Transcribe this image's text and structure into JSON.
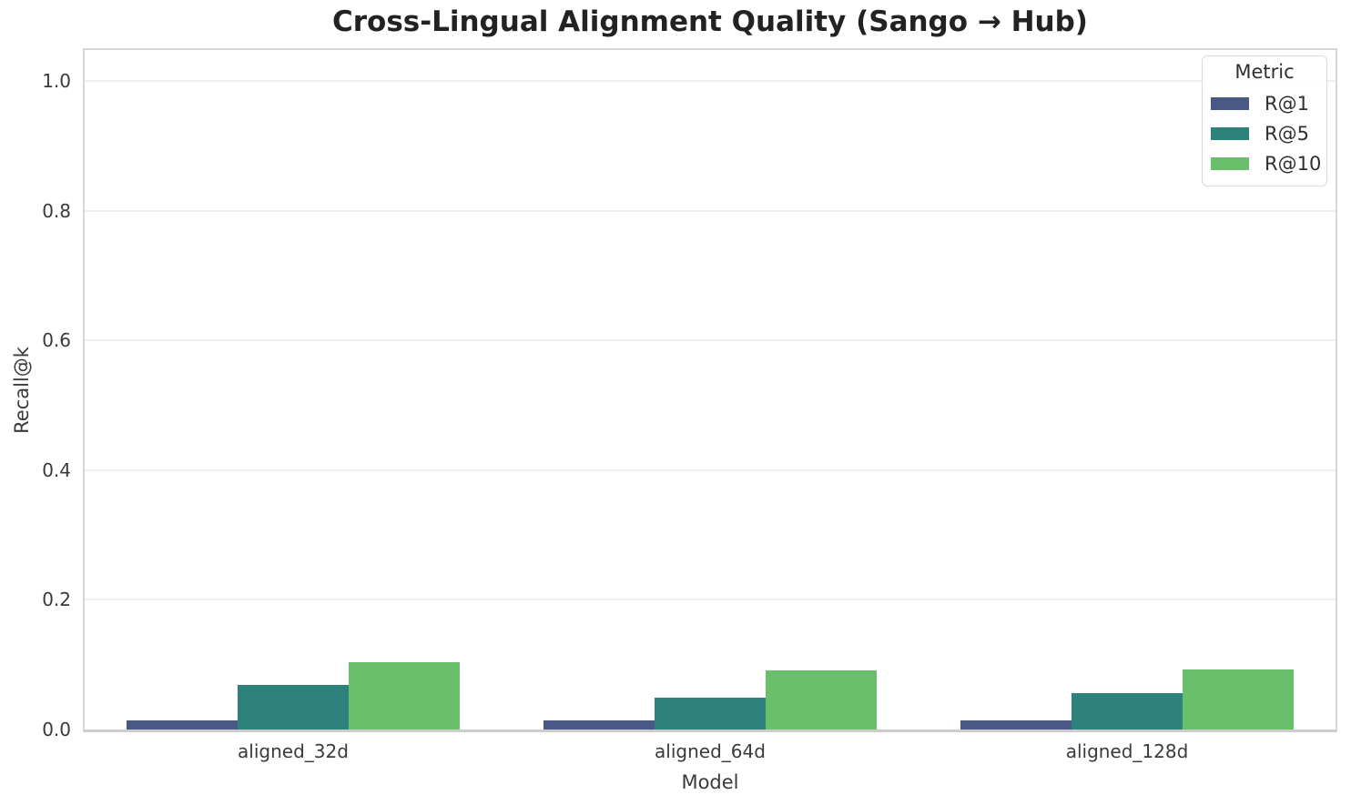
{
  "chart_data": {
    "type": "bar",
    "title": "Cross-Lingual Alignment Quality (Sango → Hub)",
    "xlabel": "Model",
    "ylabel": "Recall@k",
    "legend_title": "Metric",
    "legend_position": "upper right",
    "grid": true,
    "categories": [
      "aligned_32d",
      "aligned_64d",
      "aligned_128d"
    ],
    "series": [
      {
        "name": "R@1",
        "color": "#4a5885",
        "values": [
          0.014,
          0.014,
          0.014
        ]
      },
      {
        "name": "R@5",
        "color": "#2d837c",
        "values": [
          0.069,
          0.049,
          0.056
        ]
      },
      {
        "name": "R@10",
        "color": "#6abf6b",
        "values": [
          0.104,
          0.091,
          0.092
        ]
      }
    ],
    "ylim": [
      0,
      1.048
    ],
    "yticks": [
      "0.0",
      "0.2",
      "0.4",
      "0.6",
      "0.8",
      "1.0"
    ],
    "ytick_values": [
      0.0,
      0.2,
      0.4,
      0.6,
      0.8,
      1.0
    ]
  }
}
